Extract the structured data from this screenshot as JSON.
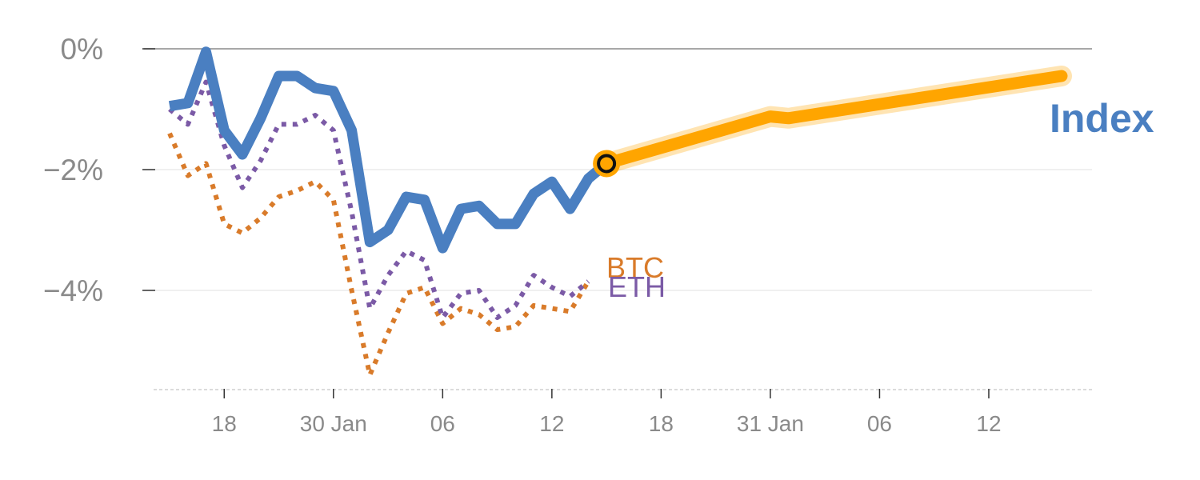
{
  "chart_data": {
    "type": "line",
    "title": "",
    "xlabel": "",
    "ylabel": "",
    "ylim": [
      -5.7,
      0
    ],
    "x_index_range": [
      0,
      49
    ],
    "gridlines": [
      {
        "value": 0,
        "style": "baseline"
      },
      {
        "value": -2,
        "style": "light"
      },
      {
        "value": -4,
        "style": "light"
      }
    ],
    "y_ticks": [
      {
        "value": 0,
        "label": "0%"
      },
      {
        "value": -2,
        "label": "−2%"
      },
      {
        "value": -4,
        "label": "−4%"
      }
    ],
    "x_ticks": [
      {
        "x": 3,
        "label": "18"
      },
      {
        "x": 9,
        "label": "30 Jan"
      },
      {
        "x": 15,
        "label": "06"
      },
      {
        "x": 21,
        "label": "12"
      },
      {
        "x": 27,
        "label": "18"
      },
      {
        "x": 33,
        "label": "31 Jan"
      },
      {
        "x": 39,
        "label": "06"
      },
      {
        "x": 45,
        "label": "12"
      }
    ],
    "series": [
      {
        "name": "BTC",
        "label": "BTC",
        "color": "#d97b2a",
        "style": "dotted",
        "x": [
          0,
          1,
          2,
          3,
          4,
          5,
          6,
          7,
          8,
          9,
          10,
          11,
          12,
          13,
          14,
          15,
          16,
          17,
          18,
          19,
          20,
          21,
          22,
          23
        ],
        "values": [
          -1.4,
          -2.1,
          -1.9,
          -2.9,
          -3.05,
          -2.8,
          -2.45,
          -2.35,
          -2.2,
          -2.5,
          -4.0,
          -5.4,
          -4.7,
          -4.05,
          -3.95,
          -4.55,
          -4.3,
          -4.4,
          -4.65,
          -4.6,
          -4.25,
          -4.3,
          -4.35,
          -3.85
        ]
      },
      {
        "name": "ETH",
        "label": "ETH",
        "color": "#7b5aa6",
        "style": "dotted",
        "x": [
          0,
          1,
          2,
          3,
          4,
          5,
          6,
          7,
          8,
          9,
          10,
          11,
          12,
          13,
          14,
          15,
          16,
          17,
          18,
          19,
          20,
          21,
          22,
          23
        ],
        "values": [
          -1.0,
          -1.25,
          -0.55,
          -1.6,
          -2.3,
          -1.85,
          -1.25,
          -1.25,
          -1.1,
          -1.35,
          -2.7,
          -4.3,
          -3.75,
          -3.35,
          -3.5,
          -4.45,
          -4.05,
          -4.0,
          -4.45,
          -4.25,
          -3.75,
          -3.95,
          -4.1,
          -3.85
        ]
      },
      {
        "name": "Index",
        "label": "Index",
        "color": "#4a7fc1",
        "style": "solid",
        "x": [
          0,
          1,
          2,
          3,
          4,
          5,
          6,
          7,
          8,
          9,
          10,
          11,
          12,
          13,
          14,
          15,
          16,
          17,
          18,
          19,
          20,
          21,
          22,
          23,
          24
        ],
        "values": [
          -0.95,
          -0.9,
          -0.05,
          -1.35,
          -1.75,
          -1.15,
          -0.45,
          -0.45,
          -0.65,
          -0.7,
          -1.35,
          -3.2,
          -3.0,
          -2.45,
          -2.5,
          -3.3,
          -2.65,
          -2.6,
          -2.9,
          -2.9,
          -2.4,
          -2.2,
          -2.65,
          -2.15,
          -1.9
        ]
      },
      {
        "name": "Index forecast",
        "label": "",
        "color": "#ffa500",
        "style": "thick",
        "x": [
          24,
          33,
          34,
          49
        ],
        "values": [
          -1.9,
          -1.12,
          -1.15,
          -0.45
        ]
      }
    ],
    "marker": {
      "series": "Index",
      "x": 24,
      "value": -1.9
    },
    "label_colors": {
      "BTC": "#d97b2a",
      "ETH": "#7b5aa6",
      "Index": "#4a7fc1"
    }
  }
}
